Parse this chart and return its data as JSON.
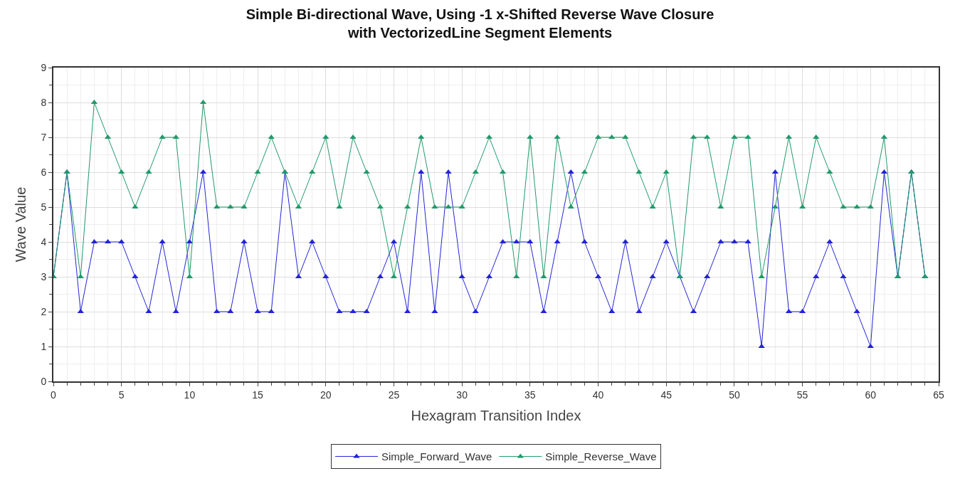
{
  "chart_data": {
    "type": "line",
    "title": "Simple Bi-directional Wave, Using -1 x-Shifted Reverse Wave Closure\nwith VectorizedLine Segment Elements",
    "xlabel": "Hexagram Transition Index",
    "ylabel": "Wave Value",
    "x": [
      0,
      1,
      2,
      3,
      4,
      5,
      6,
      7,
      8,
      9,
      10,
      11,
      12,
      13,
      14,
      15,
      16,
      17,
      18,
      19,
      20,
      21,
      22,
      23,
      24,
      25,
      26,
      27,
      28,
      29,
      30,
      31,
      32,
      33,
      34,
      35,
      36,
      37,
      38,
      39,
      40,
      41,
      42,
      43,
      44,
      45,
      46,
      47,
      48,
      49,
      50,
      51,
      52,
      53,
      54,
      55,
      56,
      57,
      58,
      59,
      60,
      61,
      62,
      63,
      64
    ],
    "series": [
      {
        "name": "Simple_Forward_Wave",
        "color": "#2323d8",
        "values": [
          3,
          6,
          2,
          4,
          4,
          4,
          3,
          2,
          4,
          2,
          4,
          6,
          2,
          2,
          4,
          2,
          2,
          6,
          3,
          4,
          3,
          2,
          2,
          2,
          3,
          4,
          2,
          6,
          2,
          6,
          3,
          2,
          3,
          4,
          4,
          4,
          2,
          4,
          6,
          4,
          3,
          2,
          4,
          2,
          3,
          4,
          3,
          2,
          3,
          4,
          4,
          4,
          1,
          6,
          2,
          2,
          3,
          4,
          3,
          2,
          1,
          6,
          3,
          6,
          3
        ]
      },
      {
        "name": "Simple_Reverse_Wave",
        "color": "#1f9a6a",
        "values": [
          3,
          6,
          3,
          8,
          7,
          6,
          5,
          6,
          7,
          7,
          3,
          8,
          5,
          5,
          5,
          6,
          7,
          6,
          5,
          6,
          7,
          5,
          7,
          6,
          5,
          3,
          5,
          7,
          5,
          5,
          5,
          6,
          7,
          6,
          3,
          7,
          3,
          7,
          5,
          6,
          7,
          7,
          7,
          6,
          5,
          6,
          3,
          7,
          7,
          5,
          7,
          7,
          3,
          5,
          7,
          5,
          7,
          6,
          5,
          5,
          5,
          7,
          3,
          6,
          3
        ]
      }
    ],
    "xlim": [
      0,
      65
    ],
    "xticks": [
      0,
      5,
      10,
      15,
      20,
      25,
      30,
      35,
      40,
      45,
      50,
      55,
      60,
      65
    ],
    "ylim": [
      0,
      9
    ],
    "yticks": [
      0,
      1,
      2,
      3,
      4,
      5,
      6,
      7,
      8,
      9
    ],
    "grid": true,
    "legend": "bottom",
    "marker": "triangle",
    "line_style": "solid"
  }
}
